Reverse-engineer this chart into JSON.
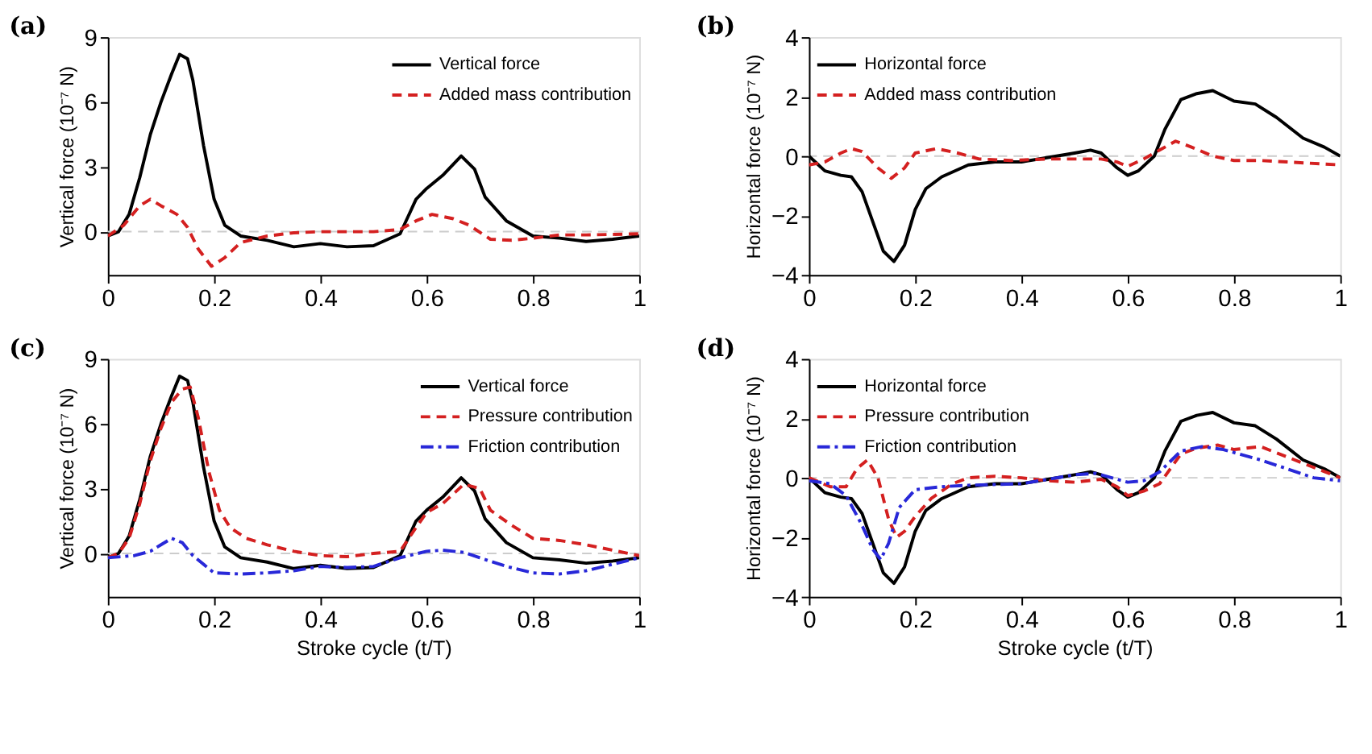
{
  "chart_data": [
    {
      "type": "line",
      "title": "(a)",
      "ylabel": "Vertical force (10⁻⁷ N)",
      "xlim": [
        0,
        1
      ],
      "xticks": [
        0,
        0.2,
        0.4,
        0.6,
        0.8,
        1
      ],
      "ylim": [
        -2,
        9
      ],
      "yticks": [
        0,
        3,
        6,
        9
      ],
      "grid": false,
      "legend": "top right",
      "marker": "none",
      "ref_lines": [
        {
          "axis": "y",
          "value": 0,
          "color": "#cccccc",
          "line_style": "dashed"
        }
      ],
      "series": [
        {
          "name": "Vertical force",
          "color": "#000000",
          "line_style": "solid",
          "x": [
            0,
            0.02,
            0.04,
            0.06,
            0.08,
            0.1,
            0.12,
            0.135,
            0.15,
            0.16,
            0.18,
            0.2,
            0.22,
            0.25,
            0.3,
            0.35,
            0.4,
            0.45,
            0.5,
            0.55,
            0.58,
            0.6,
            0.63,
            0.665,
            0.69,
            0.71,
            0.75,
            0.8,
            0.85,
            0.9,
            0.95,
            1
          ],
          "values": [
            -0.2,
            0,
            0.8,
            2.5,
            4.5,
            6,
            7.3,
            8.2,
            8,
            7,
            4,
            1.5,
            0.3,
            -0.2,
            -0.4,
            -0.7,
            -0.55,
            -0.7,
            -0.65,
            -0.1,
            1.5,
            2,
            2.6,
            3.5,
            2.9,
            1.6,
            0.5,
            -0.2,
            -0.3,
            -0.45,
            -0.35,
            -0.2
          ]
        },
        {
          "name": "Added mass contribution",
          "color": "#d42020",
          "line_style": "dashed",
          "x": [
            0,
            0.03,
            0.06,
            0.08,
            0.1,
            0.13,
            0.15,
            0.17,
            0.195,
            0.22,
            0.25,
            0.3,
            0.35,
            0.4,
            0.5,
            0.55,
            0.58,
            0.61,
            0.65,
            0.68,
            0.72,
            0.76,
            0.8,
            0.85,
            0.9,
            1
          ],
          "values": [
            -0.2,
            0.3,
            1.2,
            1.5,
            1.2,
            0.8,
            0.2,
            -0.8,
            -1.6,
            -1.2,
            -0.5,
            -0.2,
            -0.05,
            0,
            0,
            0.1,
            0.5,
            0.8,
            0.6,
            0.3,
            -0.35,
            -0.4,
            -0.3,
            -0.15,
            -0.15,
            -0.1
          ]
        }
      ]
    },
    {
      "type": "line",
      "title": "(b)",
      "ylabel": "Horizontal force (10⁻⁷ N)",
      "xlim": [
        0,
        1
      ],
      "xticks": [
        0,
        0.2,
        0.4,
        0.6,
        0.8,
        1
      ],
      "ylim": [
        -4,
        4
      ],
      "yticks": [
        -4,
        -2,
        0,
        2,
        4
      ],
      "grid": false,
      "legend": "top left",
      "marker": "none",
      "ref_lines": [
        {
          "axis": "y",
          "value": 0,
          "color": "#cccccc",
          "line_style": "dashed"
        }
      ],
      "series": [
        {
          "name": "Horizontal force",
          "color": "#000000",
          "line_style": "solid",
          "x": [
            0,
            0.03,
            0.06,
            0.08,
            0.1,
            0.12,
            0.14,
            0.16,
            0.18,
            0.2,
            0.22,
            0.25,
            0.3,
            0.35,
            0.4,
            0.45,
            0.5,
            0.53,
            0.55,
            0.58,
            0.6,
            0.62,
            0.65,
            0.67,
            0.7,
            0.73,
            0.76,
            0.8,
            0.84,
            0.88,
            0.93,
            0.97,
            1
          ],
          "values": [
            0,
            -0.5,
            -0.65,
            -0.7,
            -1.2,
            -2.2,
            -3.2,
            -3.55,
            -3,
            -1.8,
            -1.1,
            -0.7,
            -0.3,
            -0.2,
            -0.2,
            -0.05,
            0.1,
            0.2,
            0.1,
            -0.4,
            -0.65,
            -0.5,
            0,
            0.9,
            1.9,
            2.1,
            2.2,
            1.85,
            1.75,
            1.3,
            0.6,
            0.3,
            0
          ]
        },
        {
          "name": "Added mass contribution",
          "color": "#d42020",
          "line_style": "dashed",
          "x": [
            0,
            0.03,
            0.06,
            0.08,
            0.1,
            0.13,
            0.155,
            0.18,
            0.2,
            0.24,
            0.28,
            0.32,
            0.38,
            0.45,
            0.55,
            0.58,
            0.6,
            0.63,
            0.66,
            0.69,
            0.72,
            0.76,
            0.8,
            0.85,
            0.9,
            1
          ],
          "values": [
            -0.3,
            -0.2,
            0.1,
            0.25,
            0.15,
            -0.4,
            -0.75,
            -0.4,
            0.1,
            0.25,
            0.1,
            -0.1,
            -0.15,
            -0.1,
            -0.1,
            -0.2,
            -0.35,
            -0.1,
            0.2,
            0.5,
            0.3,
            0,
            -0.15,
            -0.15,
            -0.2,
            -0.3
          ]
        }
      ]
    },
    {
      "type": "line",
      "title": "(c)",
      "xlabel": "Stroke cycle (t/T)",
      "ylabel": "Vertical force (10⁻⁷ N)",
      "xlim": [
        0,
        1
      ],
      "xticks": [
        0,
        0.2,
        0.4,
        0.6,
        0.8,
        1
      ],
      "ylim": [
        -2,
        9
      ],
      "yticks": [
        0,
        3,
        6,
        9
      ],
      "grid": false,
      "legend": "top right",
      "marker": "none",
      "ref_lines": [
        {
          "axis": "y",
          "value": 0,
          "color": "#cccccc",
          "line_style": "dashed"
        }
      ],
      "series": [
        {
          "name": "Vertical force",
          "color": "#000000",
          "line_style": "solid",
          "x": [
            0,
            0.02,
            0.04,
            0.06,
            0.08,
            0.1,
            0.12,
            0.135,
            0.15,
            0.16,
            0.18,
            0.2,
            0.22,
            0.25,
            0.3,
            0.35,
            0.4,
            0.45,
            0.5,
            0.55,
            0.58,
            0.6,
            0.63,
            0.665,
            0.69,
            0.71,
            0.75,
            0.8,
            0.85,
            0.9,
            0.95,
            1
          ],
          "values": [
            -0.2,
            0,
            0.8,
            2.5,
            4.5,
            6,
            7.3,
            8.2,
            8,
            7,
            4,
            1.5,
            0.3,
            -0.2,
            -0.4,
            -0.7,
            -0.55,
            -0.7,
            -0.65,
            -0.1,
            1.5,
            2,
            2.6,
            3.5,
            2.9,
            1.6,
            0.5,
            -0.2,
            -0.3,
            -0.45,
            -0.35,
            -0.2
          ]
        },
        {
          "name": "Pressure contribution",
          "color": "#d42020",
          "line_style": "dashed",
          "x": [
            0,
            0.02,
            0.04,
            0.06,
            0.08,
            0.1,
            0.12,
            0.14,
            0.155,
            0.17,
            0.19,
            0.21,
            0.23,
            0.26,
            0.3,
            0.35,
            0.4,
            0.45,
            0.5,
            0.55,
            0.58,
            0.6,
            0.63,
            0.67,
            0.7,
            0.72,
            0.76,
            0.8,
            0.85,
            0.9,
            0.95,
            1
          ],
          "values": [
            -0.2,
            0,
            0.7,
            2.3,
            4.3,
            5.8,
            7,
            7.6,
            7.7,
            6.3,
            3.8,
            2,
            1.2,
            0.7,
            0.4,
            0.1,
            -0.1,
            -0.15,
            0,
            0.1,
            1.2,
            1.9,
            2.3,
            3.2,
            3,
            2,
            1.3,
            0.7,
            0.6,
            0.4,
            0.15,
            -0.1
          ]
        },
        {
          "name": "Friction contribution",
          "color": "#2828d8",
          "line_style": "dotted",
          "x": [
            0,
            0.05,
            0.08,
            0.1,
            0.12,
            0.14,
            0.16,
            0.2,
            0.25,
            0.3,
            0.35,
            0.4,
            0.45,
            0.5,
            0.55,
            0.6,
            0.63,
            0.67,
            0.7,
            0.75,
            0.8,
            0.85,
            0.9,
            0.95,
            1
          ],
          "values": [
            -0.2,
            -0.1,
            0.1,
            0.4,
            0.7,
            0.5,
            -0.1,
            -0.9,
            -0.95,
            -0.9,
            -0.8,
            -0.6,
            -0.65,
            -0.6,
            -0.2,
            0.1,
            0.15,
            0.05,
            -0.2,
            -0.6,
            -0.9,
            -0.95,
            -0.8,
            -0.5,
            -0.2
          ]
        }
      ]
    },
    {
      "type": "line",
      "title": "(d)",
      "xlabel": "Stroke cycle (t/T)",
      "ylabel": "Horizontal force (10⁻⁷ N)",
      "xlim": [
        0,
        1
      ],
      "xticks": [
        0,
        0.2,
        0.4,
        0.6,
        0.8,
        1
      ],
      "ylim": [
        -4,
        4
      ],
      "yticks": [
        -4,
        -2,
        0,
        2,
        4
      ],
      "grid": false,
      "legend": "top left",
      "marker": "none",
      "ref_lines": [
        {
          "axis": "y",
          "value": 0,
          "color": "#cccccc",
          "line_style": "dashed"
        }
      ],
      "series": [
        {
          "name": "Horizontal force",
          "color": "#000000",
          "line_style": "solid",
          "x": [
            0,
            0.03,
            0.06,
            0.08,
            0.1,
            0.12,
            0.14,
            0.16,
            0.18,
            0.2,
            0.22,
            0.25,
            0.3,
            0.35,
            0.4,
            0.45,
            0.5,
            0.53,
            0.55,
            0.58,
            0.6,
            0.62,
            0.65,
            0.67,
            0.7,
            0.73,
            0.76,
            0.8,
            0.84,
            0.88,
            0.93,
            0.97,
            1
          ],
          "values": [
            0,
            -0.5,
            -0.65,
            -0.7,
            -1.2,
            -2.2,
            -3.2,
            -3.55,
            -3,
            -1.8,
            -1.1,
            -0.7,
            -0.3,
            -0.2,
            -0.2,
            -0.05,
            0.1,
            0.2,
            0.1,
            -0.4,
            -0.65,
            -0.5,
            0,
            0.9,
            1.9,
            2.1,
            2.2,
            1.85,
            1.75,
            1.3,
            0.6,
            0.3,
            0
          ]
        },
        {
          "name": "Pressure contribution",
          "color": "#d42020",
          "line_style": "dashed",
          "x": [
            0,
            0.04,
            0.07,
            0.09,
            0.11,
            0.13,
            0.15,
            0.165,
            0.18,
            0.2,
            0.23,
            0.27,
            0.3,
            0.35,
            0.4,
            0.45,
            0.5,
            0.55,
            0.58,
            0.6,
            0.63,
            0.66,
            0.68,
            0.7,
            0.73,
            0.77,
            0.8,
            0.85,
            0.9,
            0.95,
            1
          ],
          "values": [
            0,
            -0.3,
            -0.3,
            0.3,
            0.6,
            0,
            -1.4,
            -2,
            -1.8,
            -1.3,
            -0.7,
            -0.2,
            0,
            0.05,
            0,
            -0.1,
            -0.15,
            -0.05,
            -0.3,
            -0.6,
            -0.45,
            -0.2,
            0.3,
            0.8,
            1,
            1.1,
            0.95,
            1.05,
            0.7,
            0.35,
            0
          ]
        },
        {
          "name": "Friction contribution",
          "color": "#2828d8",
          "line_style": "dotted",
          "x": [
            0,
            0.04,
            0.07,
            0.1,
            0.12,
            0.135,
            0.15,
            0.17,
            0.2,
            0.25,
            0.3,
            0.4,
            0.5,
            0.54,
            0.57,
            0.6,
            0.63,
            0.66,
            0.7,
            0.74,
            0.78,
            0.85,
            0.9,
            0.95,
            1
          ],
          "values": [
            -0.1,
            -0.2,
            -0.6,
            -1.6,
            -2.4,
            -2.75,
            -2.2,
            -1,
            -0.4,
            -0.3,
            -0.25,
            -0.2,
            0.1,
            0.15,
            0,
            -0.15,
            -0.1,
            0.2,
            0.9,
            1.05,
            0.95,
            0.6,
            0.3,
            0,
            -0.1
          ]
        }
      ]
    }
  ]
}
